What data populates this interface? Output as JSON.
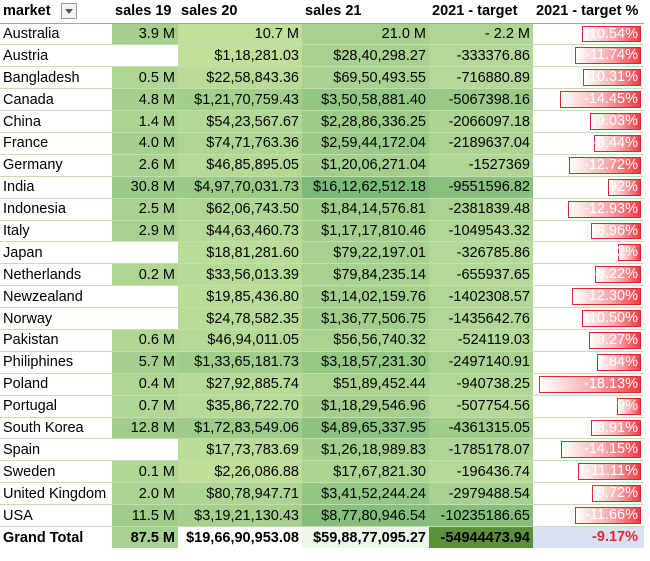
{
  "headers": {
    "market": "market",
    "sales19": "sales 19",
    "sales20": "sales 20",
    "sales21": "sales 21",
    "diff": "2021 - target",
    "pct": "2021 - target %"
  },
  "rows": [
    {
      "market": "Australia",
      "s19": "3.9 M",
      "s20": "10.7 M",
      "s21": "21.0 M",
      "diff": "- 2.2 M",
      "pct": "-10.54%",
      "pct_value": 10.54,
      "c19": "#a6d08e",
      "c20": "#c0df99",
      "c21": "#a8d18f",
      "cd": "#aed594"
    },
    {
      "market": "Austria",
      "s19": "",
      "s20": "$1,18,281.03",
      "s21": "$28,40,298.27",
      "diff": "-333376.86",
      "pct": "-11.74%",
      "pct_value": 11.74,
      "c19": "#ffffff",
      "c20": "#c0df99",
      "c21": "#a9d290",
      "cd": "#b3d897"
    },
    {
      "market": "Bangladesh",
      "s19": "0.5 M",
      "s20": "$22,58,843.36",
      "s21": "$69,50,493.55",
      "diff": "-716880.89",
      "pct": "-10.31%",
      "pct_value": 10.31,
      "c19": "#b0d694",
      "c20": "#b8dc95",
      "c21": "#a9d290",
      "cd": "#b3d897"
    },
    {
      "market": "Canada",
      "s19": "4.8 M",
      "s20": "$1,21,70,759.43",
      "s21": "$3,50,58,881.40",
      "diff": "-5067398.16",
      "pct": "-14.45%",
      "pct_value": 14.45,
      "c19": "#a6d08e",
      "c20": "#a3cf8c",
      "c21": "#94c784",
      "cd": "#9bca88"
    },
    {
      "market": "China",
      "s19": "1.4 M",
      "s20": "$54,23,567.67",
      "s21": "$2,28,86,336.25",
      "diff": "-2066097.18",
      "pct": "-9.03%",
      "pct_value": 9.03,
      "c19": "#acd592",
      "c20": "#b1d894",
      "c21": "#9dcb88",
      "cd": "#acd493"
    },
    {
      "market": "France",
      "s19": "4.0 M",
      "s20": "$74,71,763.36",
      "s21": "$2,59,44,172.04",
      "diff": "-2189637.04",
      "pct": "-8.44%",
      "pct_value": 8.44,
      "c19": "#a6d08e",
      "c20": "#add691",
      "c21": "#9bca87",
      "cd": "#abd492"
    },
    {
      "market": "Germany",
      "s19": "2.6 M",
      "s20": "$46,85,895.05",
      "s21": "$1,20,06,271.04",
      "diff": "-1527369",
      "pct": "-12.72%",
      "pct_value": 12.72,
      "c19": "#a9d290",
      "c20": "#b3d995",
      "c21": "#a3ce8c",
      "cd": "#afd695"
    },
    {
      "market": "India",
      "s19": "30.8 M",
      "s20": "$4,97,70,031.73",
      "s21": "$16,12,62,512.18",
      "diff": "-9551596.82",
      "pct": "-5.92%",
      "pct_value": 5.92,
      "c19": "#9ccb88",
      "c20": "#9ccb88",
      "c21": "#7cba77",
      "cd": "#89c07e"
    },
    {
      "market": "Indonesia",
      "s19": "2.5 M",
      "s20": "$62,06,743.50",
      "s21": "$1,84,14,576.81",
      "diff": "-2381839.48",
      "pct": "-12.93%",
      "pct_value": 12.93,
      "c19": "#a9d290",
      "c20": "#afd693",
      "c21": "#9fcc89",
      "cd": "#aad392"
    },
    {
      "market": "Italy",
      "s19": "2.9 M",
      "s20": "$44,63,460.73",
      "s21": "$1,17,17,810.46",
      "diff": "-1049543.32",
      "pct": "-8.96%",
      "pct_value": 8.96,
      "c19": "#a8d18f",
      "c20": "#b3d995",
      "c21": "#a3ce8c",
      "cd": "#b1d796"
    },
    {
      "market": "Japan",
      "s19": "",
      "s20": "$18,81,281.60",
      "s21": "$79,22,197.01",
      "diff": "-326785.86",
      "pct": "-4.12%",
      "pct_value": 4.12,
      "c19": "#ffffff",
      "c20": "#b9dd96",
      "c21": "#a7d18f",
      "cd": "#b3d897"
    },
    {
      "market": "Netherlands",
      "s19": "0.2 M",
      "s20": "$33,56,013.39",
      "s21": "$79,84,235.14",
      "diff": "-655937.65",
      "pct": "-8.22%",
      "pct_value": 8.22,
      "c19": "#b0d694",
      "c20": "#b6db96",
      "c21": "#a7d18f",
      "cd": "#b3d897"
    },
    {
      "market": "Newzealand",
      "s19": "",
      "s20": "$19,85,436.80",
      "s21": "$1,14,02,159.76",
      "diff": "-1402308.57",
      "pct": "-12.30%",
      "pct_value": 12.3,
      "c19": "#ffffff",
      "c20": "#b9dd96",
      "c21": "#a4cf8c",
      "cd": "#b0d796"
    },
    {
      "market": "Norway",
      "s19": "",
      "s20": "$24,78,582.35",
      "s21": "$1,36,77,506.75",
      "diff": "-1435642.76",
      "pct": "-10.50%",
      "pct_value": 10.5,
      "c19": "#ffffff",
      "c20": "#b7dc96",
      "c21": "#a2ce8b",
      "cd": "#b0d796"
    },
    {
      "market": "Pakistan",
      "s19": "0.6 M",
      "s20": "$46,94,011.05",
      "s21": "$56,56,740.32",
      "diff": "-524119.03",
      "pct": "-9.27%",
      "pct_value": 9.27,
      "c19": "#b0d694",
      "c20": "#b3d995",
      "c21": "#aad390",
      "cd": "#b3d897"
    },
    {
      "market": "Philiphines",
      "s19": "5.7 M",
      "s20": "$1,33,65,181.73",
      "s21": "$3,18,57,231.30",
      "diff": "-2497140.91",
      "pct": "-7.84%",
      "pct_value": 7.84,
      "c19": "#a5d08d",
      "c20": "#a2ce8b",
      "c21": "#96c885",
      "cd": "#aad392"
    },
    {
      "market": "Poland",
      "s19": "0.4 M",
      "s20": "$27,92,885.74",
      "s21": "$51,89,452.44",
      "diff": "-940738.25",
      "pct": "-18.13%",
      "pct_value": 18.13,
      "c19": "#b0d694",
      "c20": "#b6db96",
      "c21": "#aad390",
      "cd": "#b2d896"
    },
    {
      "market": "Portugal",
      "s19": "0.7 M",
      "s20": "$35,86,722.70",
      "s21": "$1,18,29,546.96",
      "diff": "-507754.56",
      "pct": "-4.29%",
      "pct_value": 4.29,
      "c19": "#afd694",
      "c20": "#b5da95",
      "c21": "#a3ce8c",
      "cd": "#b3d897"
    },
    {
      "market": "South Korea",
      "s19": "12.8 M",
      "s20": "$1,72,83,549.06",
      "s21": "$4,89,65,337.95",
      "diff": "-4361315.05",
      "pct": "-8.91%",
      "pct_value": 8.91,
      "c19": "#a1cd8a",
      "c20": "#9ecc89",
      "c21": "#8ec281",
      "cd": "#a0cd8b"
    },
    {
      "market": "Spain",
      "s19": "",
      "s20": "$17,73,783.69",
      "s21": "$1,26,18,989.83",
      "diff": "-1785178.07",
      "pct": "-14.15%",
      "pct_value": 14.15,
      "c19": "#ffffff",
      "c20": "#b9dd96",
      "c21": "#a3ce8c",
      "cd": "#aed595"
    },
    {
      "market": "Sweden",
      "s19": "0.1 M",
      "s20": "$2,26,086.88",
      "s21": "$17,67,821.30",
      "diff": "-196436.74",
      "pct": "-11.11%",
      "pct_value": 11.11,
      "c19": "#b0d694",
      "c20": "#bfdf98",
      "c21": "#abd491",
      "cd": "#b4d998"
    },
    {
      "market": "United Kingdom",
      "s19": "2.0 M",
      "s20": "$80,78,947.71",
      "s21": "$3,41,52,244.24",
      "diff": "-2979488.54",
      "pct": "-8.72%",
      "pct_value": 8.72,
      "c19": "#abd491",
      "c20": "#abd591",
      "c21": "#95c784",
      "cd": "#a7d190"
    },
    {
      "market": "USA",
      "s19": "11.5 M",
      "s20": "$3,19,21,130.43",
      "s21": "$8,77,80,946.54",
      "diff": "-10235186.65",
      "pct": "-11.66%",
      "pct_value": 11.66,
      "c19": "#a1cd8a",
      "c20": "#a6d08d",
      "c21": "#86be7c",
      "cd": "#86be7c"
    }
  ],
  "total": {
    "market": "Grand Total",
    "s19": "87.5 M",
    "s20": "$19,66,90,953.08",
    "s21": "$59,88,77,095.27",
    "diff": "-54944473.94",
    "pct": "-9.17%",
    "pct_value": 9.17,
    "c19": "#a7d18f",
    "c20": "#ffffff",
    "c21": "#eef6e9",
    "cd": "#5c8f3a"
  },
  "colors": {
    "bar_border": "#e0272f",
    "bar_fill": "#ef3b43",
    "total_pct_bg": "#d9e1f2"
  },
  "icons": {
    "filter": "filter-dropdown-icon"
  },
  "max_pct": 18.13
}
